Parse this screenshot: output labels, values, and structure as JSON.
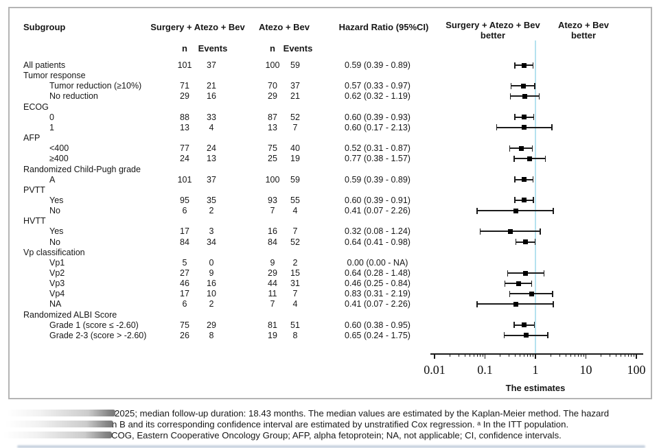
{
  "figure": {
    "columns": {
      "subgroup": "Subgroup",
      "arm1": "Surgery + Atezo + Bev",
      "arm2": "Atezo + Bev",
      "n": "n",
      "events": "Events",
      "hr": "Hazard Ratio (95%CI)",
      "left_better_line1": "Surgery + Atezo + Bev",
      "left_better_line2": "better",
      "right_better_line1": "Atezo + Bev",
      "right_better_line2": "better"
    },
    "rows": [
      {
        "label": "All patients",
        "indent": 0,
        "n1": "101",
        "e1": "37",
        "n2": "100",
        "e2": "59",
        "hr_text": "0.59 (0.39 - 0.89)",
        "hr": 0.59,
        "lo": 0.39,
        "hi": 0.89
      },
      {
        "label": "Tumor response",
        "indent": 0,
        "header": true
      },
      {
        "label": "Tumor reduction (≥10%)",
        "indent": 1,
        "n1": "71",
        "e1": "21",
        "n2": "70",
        "e2": "37",
        "hr_text": "0.57 (0.33 - 0.97)",
        "hr": 0.57,
        "lo": 0.33,
        "hi": 0.97
      },
      {
        "label": "No reduction",
        "indent": 1,
        "n1": "29",
        "e1": "16",
        "n2": "29",
        "e2": "21",
        "hr_text": "0.62 (0.32 - 1.19)",
        "hr": 0.62,
        "lo": 0.32,
        "hi": 1.19
      },
      {
        "label": "ECOG",
        "indent": 0,
        "header": true
      },
      {
        "label": "0",
        "indent": 1,
        "n1": "88",
        "e1": "33",
        "n2": "87",
        "e2": "52",
        "hr_text": "0.60 (0.39 - 0.93)",
        "hr": 0.6,
        "lo": 0.39,
        "hi": 0.93
      },
      {
        "label": "1",
        "indent": 1,
        "n1": "13",
        "e1": "4",
        "n2": "13",
        "e2": "7",
        "hr_text": "0.60 (0.17 - 2.13)",
        "hr": 0.6,
        "lo": 0.17,
        "hi": 2.13
      },
      {
        "label": "AFP",
        "indent": 0,
        "header": true
      },
      {
        "label": "<400",
        "indent": 1,
        "n1": "77",
        "e1": "24",
        "n2": "75",
        "e2": "40",
        "hr_text": "0.52 (0.31 - 0.87)",
        "hr": 0.52,
        "lo": 0.31,
        "hi": 0.87
      },
      {
        "label": "≥400",
        "indent": 1,
        "n1": "24",
        "e1": "13",
        "n2": "25",
        "e2": "19",
        "hr_text": "0.77 (0.38 - 1.57)",
        "hr": 0.77,
        "lo": 0.38,
        "hi": 1.57
      },
      {
        "label": "Randomized Child-Pugh grade",
        "indent": 0,
        "header": true
      },
      {
        "label": "A",
        "indent": 1,
        "n1": "101",
        "e1": "37",
        "n2": "100",
        "e2": "59",
        "hr_text": "0.59 (0.39 - 0.89)",
        "hr": 0.59,
        "lo": 0.39,
        "hi": 0.89
      },
      {
        "label": "PVTT",
        "indent": 0,
        "header": true
      },
      {
        "label": "Yes",
        "indent": 1,
        "n1": "95",
        "e1": "35",
        "n2": "93",
        "e2": "55",
        "hr_text": "0.60 (0.39 - 0.91)",
        "hr": 0.6,
        "lo": 0.39,
        "hi": 0.91
      },
      {
        "label": "No",
        "indent": 1,
        "n1": "6",
        "e1": "2",
        "n2": "7",
        "e2": "4",
        "hr_text": "0.41 (0.07 - 2.26)",
        "hr": 0.41,
        "lo": 0.07,
        "hi": 2.26
      },
      {
        "label": "HVTT",
        "indent": 0,
        "header": true
      },
      {
        "label": "Yes",
        "indent": 1,
        "n1": "17",
        "e1": "3",
        "n2": "16",
        "e2": "7",
        "hr_text": "0.32 (0.08 - 1.24)",
        "hr": 0.32,
        "lo": 0.08,
        "hi": 1.24
      },
      {
        "label": "No",
        "indent": 1,
        "n1": "84",
        "e1": "34",
        "n2": "84",
        "e2": "52",
        "hr_text": "0.64 (0.41 - 0.98)",
        "hr": 0.64,
        "lo": 0.41,
        "hi": 0.98
      },
      {
        "label": "Vp classification",
        "indent": 0,
        "header": true
      },
      {
        "label": "Vp1",
        "indent": 1,
        "n1": "5",
        "e1": "0",
        "n2": "9",
        "e2": "2",
        "hr_text": "0.00 (0.00 - NA)",
        "hr": null,
        "lo": null,
        "hi": null
      },
      {
        "label": "Vp2",
        "indent": 1,
        "n1": "27",
        "e1": "9",
        "n2": "29",
        "e2": "15",
        "hr_text": "0.64 (0.28 - 1.48)",
        "hr": 0.64,
        "lo": 0.28,
        "hi": 1.48
      },
      {
        "label": "Vp3",
        "indent": 1,
        "n1": "46",
        "e1": "16",
        "n2": "44",
        "e2": "31",
        "hr_text": "0.46 (0.25 - 0.84)",
        "hr": 0.46,
        "lo": 0.25,
        "hi": 0.84
      },
      {
        "label": "Vp4",
        "indent": 1,
        "n1": "17",
        "e1": "10",
        "n2": "11",
        "e2": "7",
        "hr_text": "0.83 (0.31 - 2.19)",
        "hr": 0.83,
        "lo": 0.31,
        "hi": 2.19
      },
      {
        "label": "NA",
        "indent": 1,
        "n1": "6",
        "e1": "2",
        "n2": "7",
        "e2": "4",
        "hr_text": "0.41 (0.07 - 2.26)",
        "hr": 0.41,
        "lo": 0.07,
        "hi": 2.26
      },
      {
        "label": "Randomized ALBI Score",
        "indent": 0,
        "header": true
      },
      {
        "label": "Grade 1 (score ≤ -2.60)",
        "indent": 1,
        "n1": "75",
        "e1": "29",
        "n2": "81",
        "e2": "51",
        "hr_text": "0.60 (0.38 - 0.95)",
        "hr": 0.6,
        "lo": 0.38,
        "hi": 0.95
      },
      {
        "label": "Grade 2-3 (score > -2.60)",
        "indent": 1,
        "n1": "26",
        "e1": "8",
        "n2": "19",
        "e2": "8",
        "hr_text": "0.65 (0.24 - 1.75)",
        "hr": 0.65,
        "lo": 0.24,
        "hi": 1.75
      }
    ],
    "axis": {
      "tick_values": [
        0.01,
        0.1,
        1,
        10,
        100
      ],
      "tick_labels": [
        "0.01",
        "0.1",
        "1",
        "10",
        "100"
      ],
      "label": "The estimates",
      "reference_line": 1
    },
    "colors": {
      "reference_line": "#b5e2ef",
      "marker": "#000000",
      "border": "#b4b4b4",
      "footnote_text": "#1d5a96"
    }
  },
  "footnote": {
    "line1": "2025; median follow-up duration: 18.43 months. The median values are estimated by the Kaplan-Meier method. The hazard",
    "line2": "n B and its corresponding confidence interval are estimated by unstratified Cox regression. ᵃ In the ITT population.",
    "line3": "COG, Eastern Cooperative Oncology Group; AFP, alpha fetoprotein; NA, not applicable; CI, confidence intervals."
  },
  "chart_data": {
    "type": "scatter",
    "variant": "forest_plot",
    "title": "Hazard Ratio (95%CI)",
    "xlabel": "The estimates",
    "xscale": "log",
    "xlim": [
      0.01,
      100
    ],
    "xticks": [
      0.01,
      0.1,
      1,
      10,
      100
    ],
    "reference_line_x": 1,
    "left_region_label": "Surgery + Atezo + Bev better",
    "right_region_label": "Atezo + Bev better",
    "points": [
      {
        "label": "All patients",
        "hr": 0.59,
        "lo": 0.39,
        "hi": 0.89
      },
      {
        "label": "Tumor reduction (≥10%)",
        "hr": 0.57,
        "lo": 0.33,
        "hi": 0.97
      },
      {
        "label": "No reduction",
        "hr": 0.62,
        "lo": 0.32,
        "hi": 1.19
      },
      {
        "label": "ECOG 0",
        "hr": 0.6,
        "lo": 0.39,
        "hi": 0.93
      },
      {
        "label": "ECOG 1",
        "hr": 0.6,
        "lo": 0.17,
        "hi": 2.13
      },
      {
        "label": "AFP <400",
        "hr": 0.52,
        "lo": 0.31,
        "hi": 0.87
      },
      {
        "label": "AFP ≥400",
        "hr": 0.77,
        "lo": 0.38,
        "hi": 1.57
      },
      {
        "label": "Child-Pugh A",
        "hr": 0.59,
        "lo": 0.39,
        "hi": 0.89
      },
      {
        "label": "PVTT Yes",
        "hr": 0.6,
        "lo": 0.39,
        "hi": 0.91
      },
      {
        "label": "PVTT No",
        "hr": 0.41,
        "lo": 0.07,
        "hi": 2.26
      },
      {
        "label": "HVTT Yes",
        "hr": 0.32,
        "lo": 0.08,
        "hi": 1.24
      },
      {
        "label": "HVTT No",
        "hr": 0.64,
        "lo": 0.41,
        "hi": 0.98
      },
      {
        "label": "Vp1",
        "hr": 0.0,
        "lo": 0.0,
        "hi": null
      },
      {
        "label": "Vp2",
        "hr": 0.64,
        "lo": 0.28,
        "hi": 1.48
      },
      {
        "label": "Vp3",
        "hr": 0.46,
        "lo": 0.25,
        "hi": 0.84
      },
      {
        "label": "Vp4",
        "hr": 0.83,
        "lo": 0.31,
        "hi": 2.19
      },
      {
        "label": "Vp NA",
        "hr": 0.41,
        "lo": 0.07,
        "hi": 2.26
      },
      {
        "label": "ALBI Grade 1 (score ≤ -2.60)",
        "hr": 0.6,
        "lo": 0.38,
        "hi": 0.95
      },
      {
        "label": "ALBI Grade 2-3 (score > -2.60)",
        "hr": 0.65,
        "lo": 0.24,
        "hi": 1.75
      }
    ]
  }
}
